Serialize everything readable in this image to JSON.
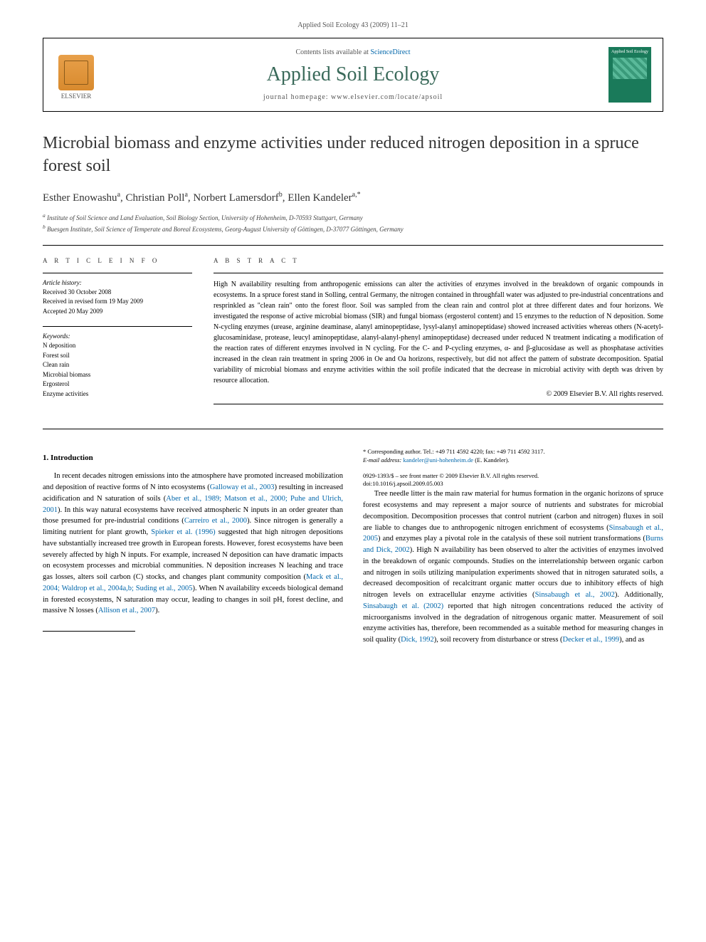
{
  "citation": "Applied Soil Ecology 43 (2009) 11–21",
  "header": {
    "contents_prefix": "Contents lists available at ",
    "contents_link": "ScienceDirect",
    "journal_name": "Applied Soil Ecology",
    "homepage_label": "journal homepage: www.elsevier.com/locate/apsoil",
    "publisher": "ELSEVIER",
    "cover_title": "Applied Soil Ecology"
  },
  "title": "Microbial biomass and enzyme activities under reduced nitrogen deposition in a spruce forest soil",
  "authors_html": "Esther Enowashu<sup>a</sup>, Christian Poll<sup>a</sup>, Norbert Lamersdorf<sup>b</sup>, Ellen Kandeler<sup>a,*</sup>",
  "affiliations": {
    "a": "Institute of Soil Science and Land Evaluation, Soil Biology Section, University of Hohenheim, D-70593 Stuttgart, Germany",
    "b": "Buesgen Institute, Soil Science of Temperate and Boreal Ecosystems, Georg-August University of Göttingen, D-37077 Göttingen, Germany"
  },
  "article_info": {
    "heading": "A R T I C L E   I N F O",
    "history_heading": "Article history:",
    "history": [
      "Received 30 October 2008",
      "Received in revised form 19 May 2009",
      "Accepted 20 May 2009"
    ],
    "keywords_heading": "Keywords:",
    "keywords": [
      "N deposition",
      "Forest soil",
      "Clean rain",
      "Microbial biomass",
      "Ergosterol",
      "Enzyme activities"
    ]
  },
  "abstract": {
    "heading": "A B S T R A C T",
    "text": "High N availability resulting from anthropogenic emissions can alter the activities of enzymes involved in the breakdown of organic compounds in ecosystems. In a spruce forest stand in Solling, central Germany, the nitrogen contained in throughfall water was adjusted to pre-industrial concentrations and resprinkled as \"clean rain\" onto the forest floor. Soil was sampled from the clean rain and control plot at three different dates and four horizons. We investigated the response of active microbial biomass (SIR) and fungal biomass (ergosterol content) and 15 enzymes to the reduction of N deposition. Some N-cycling enzymes (urease, arginine deaminase, alanyl aminopeptidase, lysyl-alanyl aminopeptidase) showed increased activities whereas others (N-acetyl-glucosaminidase, protease, leucyl aminopeptidase, alanyl-alanyl-phenyl aminopeptidase) decreased under reduced N treatment indicating a modification of the reaction rates of different enzymes involved in N cycling. For the C- and P-cycling enzymes, α- and β-glucosidase as well as phosphatase activities increased in the clean rain treatment in spring 2006 in Oe and Oa horizons, respectively, but did not affect the pattern of substrate decomposition. Spatial variability of microbial biomass and enzyme activities within the soil profile indicated that the decrease in microbial activity with depth was driven by resource allocation.",
    "copyright": "© 2009 Elsevier B.V. All rights reserved."
  },
  "introduction": {
    "heading": "1. Introduction",
    "para1_pre": "In recent decades nitrogen emissions into the atmosphere have promoted increased mobilization and deposition of reactive forms of N into ecosystems (",
    "ref1": "Galloway et al., 2003",
    "para1_mid1": ") resulting in increased acidification and N saturation of soils (",
    "ref2": "Aber et al., 1989; Matson et al., 2000; Puhe and Ulrich, 2001",
    "para1_mid2": "). In this way natural ecosystems have received atmospheric N inputs in an order greater than those presumed for pre-industrial conditions (",
    "ref3": "Carreiro et al., 2000",
    "para1_mid3": "). Since nitrogen is generally a limiting nutrient for plant growth, ",
    "ref4": "Spieker et al. (1996)",
    "para1_mid4": " suggested that high nitrogen depositions have substantially increased tree growth in European forests. However, forest ecosystems have been severely affected by high N inputs. For example, increased N deposition can have dramatic impacts on ecosystem processes and microbial communities. N deposition increases N leaching and trace gas losses, alters soil carbon (C) stocks, and changes plant community composition (",
    "ref5": "Mack et al., 2004; Waldrop et al., 2004a,b; Suding et al., 2005",
    "para1_mid5": "). When N availability exceeds biological demand in forested ecosystems, N saturation may occur, leading to changes in soil pH, forest decline, and massive N losses (",
    "ref6": "Allison et al., 2007",
    "para1_end": ").",
    "para2_pre": "Tree needle litter is the main raw material for humus formation in the organic horizons of spruce forest ecosystems and may represent a major source of nutrients and substrates for microbial decomposition. Decomposition processes that control nutrient (carbon and nitrogen) fluxes in soil are liable to changes due to anthropogenic nitrogen enrichment of ecosystems (",
    "ref7": "Sinsabaugh et al., 2005",
    "para2_mid1": ") and enzymes play a pivotal role in the catalysis of these soil nutrient transformations (",
    "ref8": "Burns and Dick, 2002",
    "para2_mid2": "). High N availability has been observed to alter the activities of enzymes involved in the breakdown of organic compounds. Studies on the interrelationship between organic carbon and nitrogen in soils utilizing manipulation experiments showed that in nitrogen saturated soils, a decreased decomposition of recalcitrant organic matter occurs due to inhibitory effects of high nitrogen levels on extracellular enzyme activities (",
    "ref9": "Sinsabaugh et al., 2002",
    "para2_mid3": "). Additionally, ",
    "ref10": "Sinsabaugh et al. (2002)",
    "para2_mid4": " reported that high nitrogen concentrations reduced the activity of microorganisms involved in the degradation of nitrogenous organic matter. Measurement of soil enzyme activities has, therefore, been recommended as a suitable method for measuring changes in soil quality (",
    "ref11": "Dick, 1992",
    "para2_mid5": "), soil recovery from disturbance or stress (",
    "ref12": "Decker et al., 1999",
    "para2_end": "), and as"
  },
  "footnotes": {
    "corresponding": "* Corresponding author. Tel.: +49 711 4592 4220; fax: +49 711 4592 3117.",
    "email_label": "E-mail address: ",
    "email": "kandeler@uni-hohenheim.de",
    "email_suffix": " (E. Kandeler)."
  },
  "doi": {
    "issn": "0929-1393/$ – see front matter © 2009 Elsevier B.V. All rights reserved.",
    "doi": "doi:10.1016/j.apsoil.2009.05.003"
  }
}
